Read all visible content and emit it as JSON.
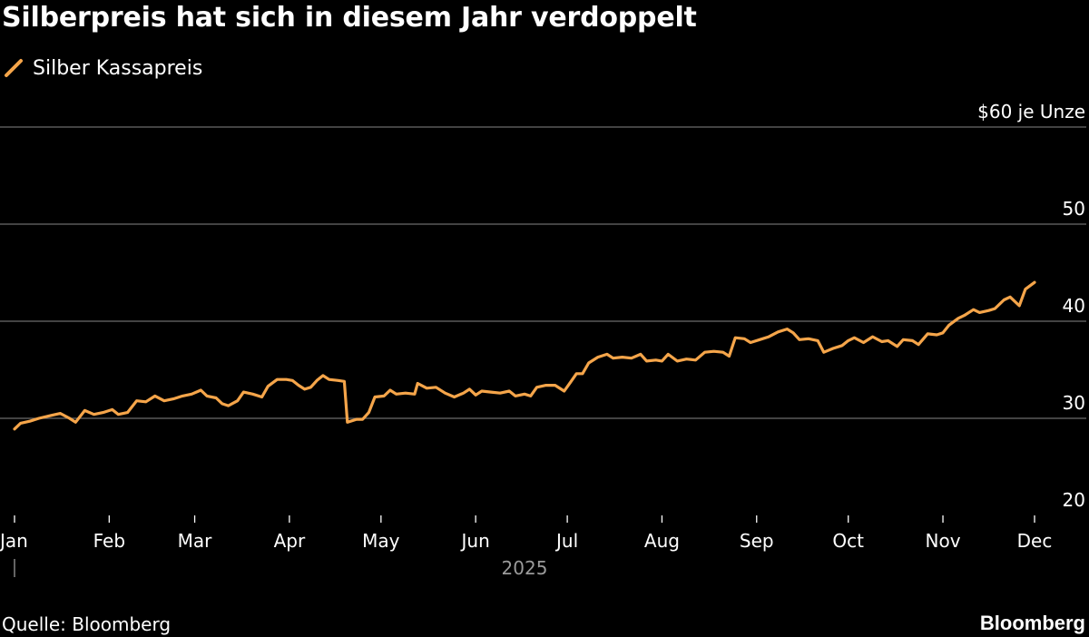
{
  "title": "Silberpreis hat sich in diesem Jahr verdoppelt",
  "source": "Quelle: Bloomberg",
  "brand": "Bloomberg",
  "colors": {
    "background": "#000000",
    "series": "#f5a54a",
    "grid": "#6b6b6b",
    "text": "#ffffff",
    "muted": "#9a9a9a"
  },
  "chart_data": {
    "type": "line",
    "unit_label": "$60 je Unze",
    "year_label": "2025",
    "ylim": [
      20,
      60
    ],
    "yticks": [
      20,
      30,
      40,
      50,
      60
    ],
    "ytick_labels": [
      "20",
      "30",
      "40",
      "50",
      "$60 je Unze"
    ],
    "grid": true,
    "legend_position": "top-left",
    "x_axis": {
      "start": "2025-01-01",
      "end": "2025-12-01",
      "ticks": [
        {
          "date": "2025-01-01",
          "label": "Jan"
        },
        {
          "date": "2025-02-01",
          "label": "Feb"
        },
        {
          "date": "2025-03-01",
          "label": "Mar"
        },
        {
          "date": "2025-04-01",
          "label": "Apr"
        },
        {
          "date": "2025-05-01",
          "label": "May"
        },
        {
          "date": "2025-06-01",
          "label": "Jun"
        },
        {
          "date": "2025-07-01",
          "label": "Jul"
        },
        {
          "date": "2025-08-01",
          "label": "Aug"
        },
        {
          "date": "2025-09-01",
          "label": "Sep"
        },
        {
          "date": "2025-10-01",
          "label": "Oct"
        },
        {
          "date": "2025-11-01",
          "label": "Nov"
        },
        {
          "date": "2025-12-01",
          "label": "Dec"
        }
      ]
    },
    "series": [
      {
        "name": "Silber Kassapreis",
        "points": [
          [
            "2025-01-01",
            28.9
          ],
          [
            "2025-01-03",
            29.5
          ],
          [
            "2025-01-06",
            29.7
          ],
          [
            "2025-01-09",
            30.0
          ],
          [
            "2025-01-13",
            30.3
          ],
          [
            "2025-01-16",
            30.5
          ],
          [
            "2025-01-19",
            30.0
          ],
          [
            "2025-01-21",
            29.6
          ],
          [
            "2025-01-24",
            30.8
          ],
          [
            "2025-01-27",
            30.4
          ],
          [
            "2025-01-30",
            30.6
          ],
          [
            "2025-02-02",
            30.9
          ],
          [
            "2025-02-04",
            30.4
          ],
          [
            "2025-02-07",
            30.6
          ],
          [
            "2025-02-10",
            31.8
          ],
          [
            "2025-02-13",
            31.7
          ],
          [
            "2025-02-16",
            32.3
          ],
          [
            "2025-02-19",
            31.8
          ],
          [
            "2025-02-22",
            32.0
          ],
          [
            "2025-02-25",
            32.3
          ],
          [
            "2025-02-28",
            32.5
          ],
          [
            "2025-03-03",
            32.9
          ],
          [
            "2025-03-05",
            32.3
          ],
          [
            "2025-03-08",
            32.1
          ],
          [
            "2025-03-10",
            31.5
          ],
          [
            "2025-03-12",
            31.3
          ],
          [
            "2025-03-15",
            31.8
          ],
          [
            "2025-03-17",
            32.7
          ],
          [
            "2025-03-20",
            32.5
          ],
          [
            "2025-03-23",
            32.2
          ],
          [
            "2025-03-25",
            33.3
          ],
          [
            "2025-03-28",
            34.0
          ],
          [
            "2025-03-31",
            34.0
          ],
          [
            "2025-04-02",
            33.9
          ],
          [
            "2025-04-04",
            33.4
          ],
          [
            "2025-04-06",
            33.0
          ],
          [
            "2025-04-08",
            33.2
          ],
          [
            "2025-04-10",
            33.9
          ],
          [
            "2025-04-12",
            34.4
          ],
          [
            "2025-04-14",
            34.0
          ],
          [
            "2025-04-17",
            33.9
          ],
          [
            "2025-04-19",
            33.8
          ],
          [
            "2025-04-20",
            29.6
          ],
          [
            "2025-04-23",
            29.9
          ],
          [
            "2025-04-25",
            29.9
          ],
          [
            "2025-04-27",
            30.6
          ],
          [
            "2025-04-29",
            32.2
          ],
          [
            "2025-05-02",
            32.3
          ],
          [
            "2025-05-04",
            32.9
          ],
          [
            "2025-05-06",
            32.5
          ],
          [
            "2025-05-09",
            32.6
          ],
          [
            "2025-05-12",
            32.5
          ],
          [
            "2025-05-13",
            33.6
          ],
          [
            "2025-05-16",
            33.1
          ],
          [
            "2025-05-19",
            33.2
          ],
          [
            "2025-05-22",
            32.6
          ],
          [
            "2025-05-25",
            32.2
          ],
          [
            "2025-05-28",
            32.6
          ],
          [
            "2025-05-30",
            33.0
          ],
          [
            "2025-06-01",
            32.4
          ],
          [
            "2025-06-03",
            32.8
          ],
          [
            "2025-06-06",
            32.7
          ],
          [
            "2025-06-09",
            32.6
          ],
          [
            "2025-06-12",
            32.8
          ],
          [
            "2025-06-14",
            32.3
          ],
          [
            "2025-06-17",
            32.5
          ],
          [
            "2025-06-19",
            32.3
          ],
          [
            "2025-06-21",
            33.2
          ],
          [
            "2025-06-24",
            33.4
          ],
          [
            "2025-06-27",
            33.4
          ],
          [
            "2025-06-30",
            32.8
          ],
          [
            "2025-07-02",
            33.7
          ],
          [
            "2025-07-04",
            34.6
          ],
          [
            "2025-07-06",
            34.6
          ],
          [
            "2025-07-08",
            35.7
          ],
          [
            "2025-07-11",
            36.3
          ],
          [
            "2025-07-14",
            36.6
          ],
          [
            "2025-07-16",
            36.2
          ],
          [
            "2025-07-19",
            36.3
          ],
          [
            "2025-07-22",
            36.2
          ],
          [
            "2025-07-25",
            36.6
          ],
          [
            "2025-07-27",
            35.9
          ],
          [
            "2025-07-30",
            36.0
          ],
          [
            "2025-08-01",
            35.9
          ],
          [
            "2025-08-03",
            36.6
          ],
          [
            "2025-08-06",
            35.9
          ],
          [
            "2025-08-09",
            36.1
          ],
          [
            "2025-08-12",
            36.0
          ],
          [
            "2025-08-15",
            36.8
          ],
          [
            "2025-08-18",
            36.9
          ],
          [
            "2025-08-21",
            36.8
          ],
          [
            "2025-08-23",
            36.4
          ],
          [
            "2025-08-25",
            38.3
          ],
          [
            "2025-08-28",
            38.2
          ],
          [
            "2025-08-30",
            37.8
          ],
          [
            "2025-09-02",
            38.1
          ],
          [
            "2025-09-05",
            38.4
          ],
          [
            "2025-09-08",
            38.9
          ],
          [
            "2025-09-11",
            39.2
          ],
          [
            "2025-09-13",
            38.8
          ],
          [
            "2025-09-15",
            38.1
          ],
          [
            "2025-09-18",
            38.2
          ],
          [
            "2025-09-21",
            38.0
          ],
          [
            "2025-09-23",
            36.8
          ],
          [
            "2025-09-26",
            37.2
          ],
          [
            "2025-09-29",
            37.5
          ],
          [
            "2025-10-01",
            38.0
          ],
          [
            "2025-10-03",
            38.3
          ],
          [
            "2025-10-06",
            37.8
          ],
          [
            "2025-10-09",
            38.4
          ],
          [
            "2025-10-12",
            37.9
          ],
          [
            "2025-10-14",
            38.0
          ],
          [
            "2025-10-17",
            37.4
          ],
          [
            "2025-10-19",
            38.1
          ],
          [
            "2025-10-22",
            38.0
          ],
          [
            "2025-10-24",
            37.6
          ],
          [
            "2025-10-27",
            38.7
          ],
          [
            "2025-10-30",
            38.6
          ],
          [
            "2025-11-01",
            38.8
          ],
          [
            "2025-11-03",
            39.6
          ],
          [
            "2025-11-06",
            40.3
          ],
          [
            "2025-11-08",
            40.6
          ],
          [
            "2025-11-11",
            41.2
          ],
          [
            "2025-11-13",
            40.9
          ],
          [
            "2025-11-16",
            41.1
          ],
          [
            "2025-11-18",
            41.3
          ],
          [
            "2025-11-21",
            42.2
          ],
          [
            "2025-11-23",
            42.5
          ],
          [
            "2025-11-26",
            41.6
          ],
          [
            "2025-11-28",
            43.3
          ],
          [
            "2025-12-01",
            44.0
          ]
        ]
      }
    ]
  }
}
